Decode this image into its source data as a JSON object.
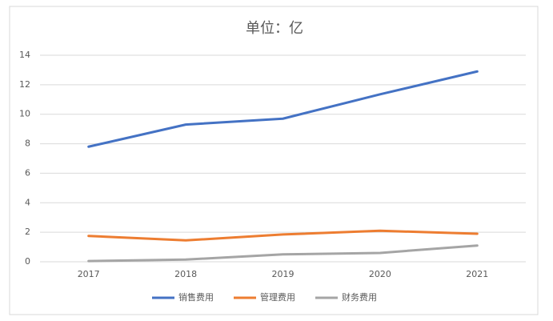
{
  "chart_data": {
    "type": "line",
    "title": "单位：亿",
    "categories": [
      "2017",
      "2018",
      "2019",
      "2020",
      "2021"
    ],
    "series": [
      {
        "name": "销售费用",
        "color": "#4472c4",
        "values": [
          7.8,
          9.3,
          9.7,
          11.35,
          12.9
        ]
      },
      {
        "name": "管理费用",
        "color": "#ed7d31",
        "values": [
          1.75,
          1.45,
          1.85,
          2.1,
          1.9
        ]
      },
      {
        "name": "财务费用",
        "color": "#a5a5a5",
        "values": [
          0.05,
          0.15,
          0.5,
          0.6,
          1.1
        ]
      }
    ],
    "ylim": [
      0,
      14
    ],
    "yticks": [
      0,
      2,
      4,
      6,
      8,
      10,
      12,
      14
    ],
    "grid": true,
    "legend": "bottom"
  }
}
